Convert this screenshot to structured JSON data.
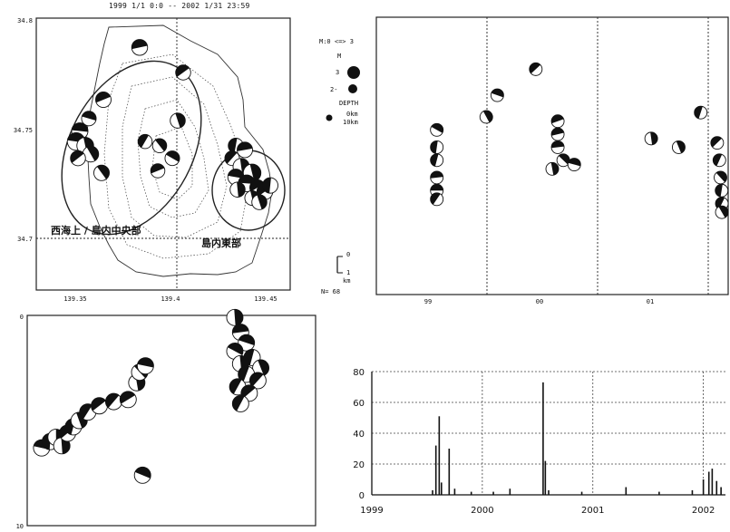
{
  "map_header": "1999 1/1 0:0 -- 2002 1/31 23:59",
  "colors": {
    "ink": "#111111",
    "paper": "#ffffff"
  },
  "legend": {
    "m_title": "M:0 <=> 3",
    "m_label": "M",
    "m_values": [
      "3",
      "2-"
    ],
    "depth_label": "DEPTH",
    "depth_values": [
      "0km",
      "10km"
    ],
    "scale_top": "0",
    "scale_bottom": "1",
    "scale_unit": "km",
    "count": "N= 68"
  },
  "map": {
    "lat_ticks": [
      "34.8",
      "34.75",
      "34.7"
    ],
    "lon_ticks": [
      "139.35",
      "139.4",
      "139.45"
    ],
    "region_west": "西海上 / 島内中央部",
    "region_east": "島内東部"
  },
  "depth_panel": {
    "top_label": "0",
    "bottom_label": "10"
  },
  "time_panel": {
    "x_labels": [
      "99",
      "00",
      "01"
    ]
  },
  "chart_data": [
    {
      "type": "scatter",
      "name": "epicenter-map",
      "xlim": [
        139.33,
        139.47
      ],
      "ylim": [
        34.67,
        34.8
      ],
      "x_ticks": [
        139.35,
        139.4,
        139.45
      ],
      "y_ticks": [
        34.7,
        34.75,
        34.8
      ],
      "points": [
        {
          "x": 139.387,
          "y": 34.786,
          "m": 2.4
        },
        {
          "x": 139.411,
          "y": 34.774,
          "m": 2.2
        },
        {
          "x": 139.367,
          "y": 34.761,
          "m": 2.3
        },
        {
          "x": 139.359,
          "y": 34.752,
          "m": 2.1
        },
        {
          "x": 139.354,
          "y": 34.746,
          "m": 2.5
        },
        {
          "x": 139.352,
          "y": 34.741,
          "m": 2.8
        },
        {
          "x": 139.357,
          "y": 34.739,
          "m": 2.6
        },
        {
          "x": 139.36,
          "y": 34.735,
          "m": 2.4
        },
        {
          "x": 139.353,
          "y": 34.733,
          "m": 2.2
        },
        {
          "x": 139.366,
          "y": 34.726,
          "m": 2.3
        },
        {
          "x": 139.408,
          "y": 34.751,
          "m": 2.2
        },
        {
          "x": 139.39,
          "y": 34.741,
          "m": 2.0
        },
        {
          "x": 139.398,
          "y": 34.739,
          "m": 2.0
        },
        {
          "x": 139.405,
          "y": 34.733,
          "m": 2.1
        },
        {
          "x": 139.397,
          "y": 34.727,
          "m": 2.0
        },
        {
          "x": 139.44,
          "y": 34.739,
          "m": 2.2
        },
        {
          "x": 139.445,
          "y": 34.737,
          "m": 2.3
        },
        {
          "x": 139.438,
          "y": 34.733,
          "m": 2.1
        },
        {
          "x": 139.443,
          "y": 34.729,
          "m": 2.5
        },
        {
          "x": 139.449,
          "y": 34.726,
          "m": 2.8
        },
        {
          "x": 139.44,
          "y": 34.724,
          "m": 2.4
        },
        {
          "x": 139.446,
          "y": 34.721,
          "m": 2.6
        },
        {
          "x": 139.452,
          "y": 34.719,
          "m": 2.3
        },
        {
          "x": 139.441,
          "y": 34.718,
          "m": 2.2
        },
        {
          "x": 139.456,
          "y": 34.717,
          "m": 2.4
        },
        {
          "x": 139.449,
          "y": 34.714,
          "m": 2.1
        },
        {
          "x": 139.459,
          "y": 34.72,
          "m": 2.3
        },
        {
          "x": 139.453,
          "y": 34.712,
          "m": 2.2
        }
      ]
    },
    {
      "type": "scatter",
      "name": "magnitude-time",
      "xlim": [
        1998.9,
        2002.1
      ],
      "ylim": [
        0,
        3.2
      ],
      "x_ticks": [
        1999,
        2000,
        2001
      ],
      "points": [
        {
          "x": 1999.45,
          "y": 1.9
        },
        {
          "x": 1999.45,
          "y": 1.7
        },
        {
          "x": 1999.45,
          "y": 1.55
        },
        {
          "x": 1999.45,
          "y": 1.35
        },
        {
          "x": 1999.45,
          "y": 1.2
        },
        {
          "x": 1999.45,
          "y": 1.1
        },
        {
          "x": 1999.9,
          "y": 2.05
        },
        {
          "x": 2000.0,
          "y": 2.3
        },
        {
          "x": 2000.35,
          "y": 2.6
        },
        {
          "x": 2000.5,
          "y": 1.45
        },
        {
          "x": 2000.55,
          "y": 2.0
        },
        {
          "x": 2000.55,
          "y": 1.85
        },
        {
          "x": 2000.55,
          "y": 1.7
        },
        {
          "x": 2000.6,
          "y": 1.55
        },
        {
          "x": 2000.7,
          "y": 1.5
        },
        {
          "x": 2001.4,
          "y": 1.8
        },
        {
          "x": 2001.65,
          "y": 1.7
        },
        {
          "x": 2001.85,
          "y": 2.1
        },
        {
          "x": 2002.0,
          "y": 1.75
        },
        {
          "x": 2002.02,
          "y": 1.55
        },
        {
          "x": 2002.03,
          "y": 1.35
        },
        {
          "x": 2002.04,
          "y": 1.2
        },
        {
          "x": 2002.05,
          "y": 1.05
        },
        {
          "x": 2002.06,
          "y": 0.95
        }
      ]
    },
    {
      "type": "scatter",
      "name": "depth-section",
      "ylim": [
        0,
        10
      ],
      "points": [
        {
          "x": 0.05,
          "y": 6.3
        },
        {
          "x": 0.08,
          "y": 6.0
        },
        {
          "x": 0.1,
          "y": 5.8
        },
        {
          "x": 0.12,
          "y": 6.2
        },
        {
          "x": 0.14,
          "y": 5.6
        },
        {
          "x": 0.16,
          "y": 5.3
        },
        {
          "x": 0.18,
          "y": 5.0
        },
        {
          "x": 0.21,
          "y": 4.6
        },
        {
          "x": 0.25,
          "y": 4.3
        },
        {
          "x": 0.3,
          "y": 4.1
        },
        {
          "x": 0.35,
          "y": 4.0
        },
        {
          "x": 0.38,
          "y": 3.2
        },
        {
          "x": 0.39,
          "y": 2.7
        },
        {
          "x": 0.41,
          "y": 2.4
        },
        {
          "x": 0.4,
          "y": 7.6
        },
        {
          "x": 0.72,
          "y": 0.1
        },
        {
          "x": 0.74,
          "y": 0.8
        },
        {
          "x": 0.76,
          "y": 1.3
        },
        {
          "x": 0.72,
          "y": 1.7
        },
        {
          "x": 0.78,
          "y": 2.0
        },
        {
          "x": 0.74,
          "y": 2.3
        },
        {
          "x": 0.81,
          "y": 2.5
        },
        {
          "x": 0.76,
          "y": 2.8
        },
        {
          "x": 0.8,
          "y": 3.1
        },
        {
          "x": 0.73,
          "y": 3.4
        },
        {
          "x": 0.77,
          "y": 3.7
        },
        {
          "x": 0.74,
          "y": 4.2
        }
      ]
    },
    {
      "type": "bar",
      "name": "daily-count",
      "xlim": [
        1999,
        2002.2
      ],
      "ylim": [
        0,
        80
      ],
      "y_ticks": [
        0,
        20,
        40,
        60,
        80
      ],
      "x_ticks": [
        1999,
        2000,
        2001,
        2002
      ],
      "bars": [
        {
          "x": 1999.55,
          "y": 3
        },
        {
          "x": 1999.58,
          "y": 32
        },
        {
          "x": 1999.61,
          "y": 51
        },
        {
          "x": 1999.63,
          "y": 8
        },
        {
          "x": 1999.7,
          "y": 30
        },
        {
          "x": 1999.75,
          "y": 4
        },
        {
          "x": 1999.9,
          "y": 2
        },
        {
          "x": 2000.1,
          "y": 2
        },
        {
          "x": 2000.25,
          "y": 4
        },
        {
          "x": 2000.55,
          "y": 73
        },
        {
          "x": 2000.57,
          "y": 22
        },
        {
          "x": 2000.6,
          "y": 3
        },
        {
          "x": 2000.9,
          "y": 2
        },
        {
          "x": 2001.3,
          "y": 5
        },
        {
          "x": 2001.6,
          "y": 2
        },
        {
          "x": 2001.9,
          "y": 3
        },
        {
          "x": 2002.0,
          "y": 10
        },
        {
          "x": 2002.05,
          "y": 15
        },
        {
          "x": 2002.08,
          "y": 17
        },
        {
          "x": 2002.12,
          "y": 9
        },
        {
          "x": 2002.16,
          "y": 5
        }
      ]
    }
  ]
}
